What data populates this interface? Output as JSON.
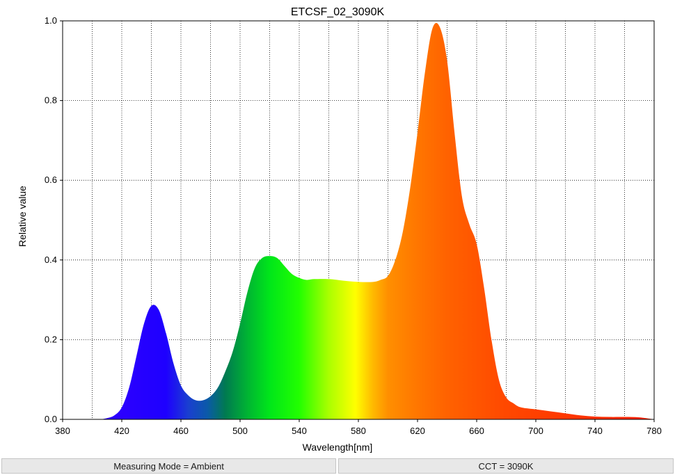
{
  "chart_data": {
    "type": "area",
    "title": "ETCSF_02_3090K",
    "xlabel": "Wavelength[nm]",
    "ylabel": "Relative value",
    "xlim": [
      380,
      780
    ],
    "ylim": [
      0,
      1
    ],
    "x_ticks": [
      "380",
      "420",
      "460",
      "500",
      "540",
      "580",
      "620",
      "660",
      "700",
      "740",
      "780"
    ],
    "y_ticks": [
      "0.0",
      "0.2",
      "0.4",
      "0.6",
      "0.8",
      "1.0"
    ],
    "grid": true,
    "grid_style": "dotted",
    "fill": "spectral-color-gradient",
    "x": [
      400,
      405,
      410,
      415,
      420,
      425,
      430,
      435,
      440,
      445,
      450,
      455,
      460,
      465,
      470,
      475,
      480,
      485,
      490,
      495,
      500,
      505,
      510,
      515,
      520,
      525,
      530,
      535,
      540,
      545,
      550,
      560,
      570,
      580,
      590,
      595,
      600,
      605,
      610,
      615,
      620,
      625,
      630,
      635,
      640,
      645,
      650,
      655,
      660,
      665,
      670,
      675,
      680,
      685,
      690,
      700,
      710,
      720,
      730,
      740,
      750,
      760,
      770,
      780
    ],
    "y": [
      0.0,
      0.0,
      0.003,
      0.01,
      0.03,
      0.08,
      0.16,
      0.24,
      0.285,
      0.275,
      0.215,
      0.14,
      0.085,
      0.06,
      0.048,
      0.048,
      0.058,
      0.08,
      0.12,
      0.17,
      0.24,
      0.32,
      0.38,
      0.405,
      0.41,
      0.405,
      0.385,
      0.365,
      0.355,
      0.35,
      0.352,
      0.352,
      0.348,
      0.345,
      0.345,
      0.35,
      0.36,
      0.4,
      0.47,
      0.58,
      0.72,
      0.87,
      0.98,
      0.985,
      0.9,
      0.72,
      0.56,
      0.49,
      0.44,
      0.33,
      0.2,
      0.1,
      0.055,
      0.04,
      0.03,
      0.025,
      0.02,
      0.015,
      0.01,
      0.007,
      0.006,
      0.006,
      0.005,
      0.0
    ]
  },
  "status": {
    "left": "Measuring Mode = Ambient",
    "right": "CCT = 3090K"
  }
}
